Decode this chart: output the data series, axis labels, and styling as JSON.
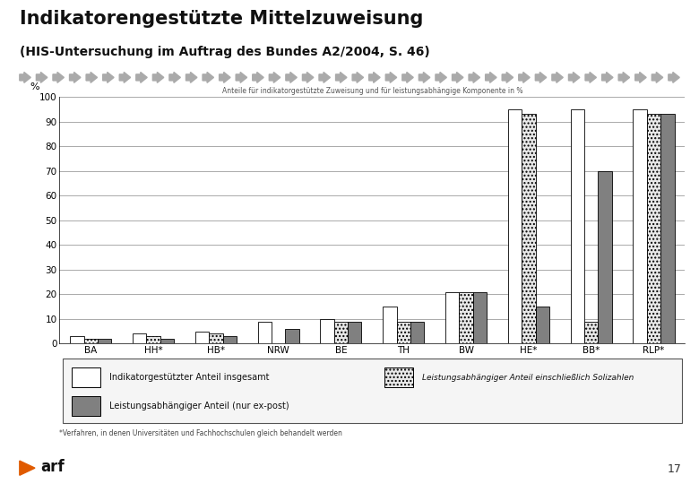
{
  "title": "Indikatorengestützte Mittelzuweisung",
  "subtitle": "(HIS-Untersuchung im Auftrag des Bundes A2/2004, S. 46)",
  "chart_title": "Anteile für indikatorgestützte Zuweisung und für leistungsabhängige Komponente in %",
  "ylabel": "%",
  "categories": [
    "BA",
    "HH",
    "HB",
    "NRW",
    "BE",
    "TH",
    "BW",
    "HE",
    "BB",
    "RLP"
  ],
  "star_cats": [
    1,
    2,
    7,
    8,
    9
  ],
  "white_bars": [
    3,
    4,
    5,
    9,
    10,
    15,
    21,
    95,
    95,
    95
  ],
  "dotted_bars": [
    2,
    3,
    4,
    0,
    9,
    9,
    21,
    93,
    9,
    93
  ],
  "dark_bars": [
    2,
    2,
    3,
    6,
    9,
    9,
    21,
    15,
    70,
    93
  ],
  "ylim": [
    0,
    100
  ],
  "yticks": [
    0,
    10,
    20,
    30,
    40,
    50,
    60,
    70,
    80,
    90,
    100
  ],
  "color_white": "#ffffff",
  "color_dotted_fill": "#d8d8d8",
  "color_dark": "#808080",
  "color_border": "#000000",
  "background_color": "#ffffff",
  "legend1": "Indikatorgestützter Anteil insgesamt",
  "legend2": "Leistungsabhängiger Anteil einschließlich Solizahlen",
  "legend3": "Leistungsabhängiger Anteil (nur ex-post)",
  "footnote": "*Verfahren, in denen Universitäten und Fachhochschulen gleich behandelt werden",
  "arrow_color": "#aaaaaa",
  "page_number": "17"
}
